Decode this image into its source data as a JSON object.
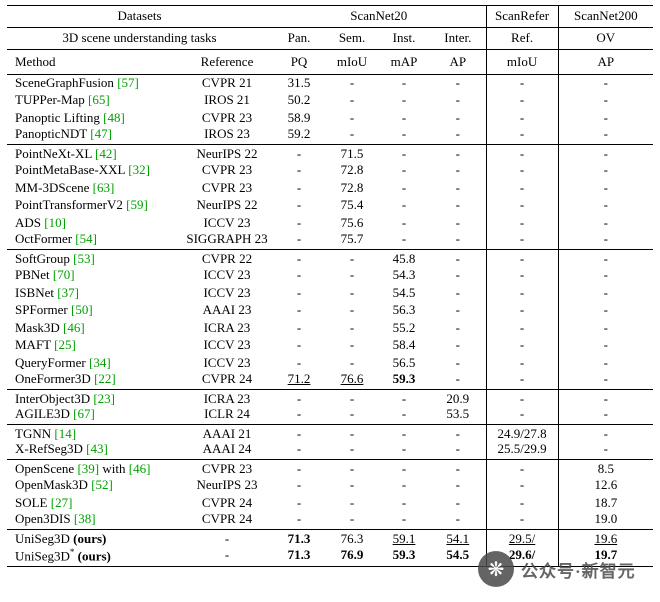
{
  "header": {
    "datasets_label": "Datasets",
    "scannet20": "ScanNet20",
    "scanrefer": "ScanRefer",
    "scannet200": "ScanNet200",
    "tasks_label": "3D scene understanding tasks",
    "task_cols": [
      "Pan.",
      "Sem.",
      "Inst.",
      "Inter.",
      "Ref.",
      "OV"
    ],
    "method_label": "Method",
    "reference_label": "Reference",
    "metric_cols": [
      "PQ",
      "mIoU",
      "mAP",
      "AP",
      "mIoU",
      "AP"
    ]
  },
  "colors": {
    "citation_green": "#00a000"
  },
  "groups": [
    {
      "rows": [
        {
          "method": [
            {
              "t": "SceneGraphFusion ",
              "c": false
            },
            {
              "t": "[57]",
              "c": true
            }
          ],
          "reference": "CVPR 21",
          "values": [
            "31.5",
            "-",
            "-",
            "-",
            "-",
            "-"
          ]
        },
        {
          "method": [
            {
              "t": "TUPPer-Map ",
              "c": false
            },
            {
              "t": "[65]",
              "c": true
            }
          ],
          "reference": "IROS 21",
          "values": [
            "50.2",
            "-",
            "-",
            "-",
            "-",
            "-"
          ]
        },
        {
          "method": [
            {
              "t": "Panoptic Lifting ",
              "c": false
            },
            {
              "t": "[48]",
              "c": true
            }
          ],
          "reference": "CVPR 23",
          "values": [
            "58.9",
            "-",
            "-",
            "-",
            "-",
            "-"
          ]
        },
        {
          "method": [
            {
              "t": "PanopticNDT ",
              "c": false
            },
            {
              "t": "[47]",
              "c": true
            }
          ],
          "reference": "IROS 23",
          "values": [
            "59.2",
            "-",
            "-",
            "-",
            "-",
            "-"
          ]
        }
      ]
    },
    {
      "rows": [
        {
          "method": [
            {
              "t": "PointNeXt-XL ",
              "c": false
            },
            {
              "t": "[42]",
              "c": true
            }
          ],
          "reference": "NeurIPS 22",
          "values": [
            "-",
            "71.5",
            "-",
            "-",
            "-",
            "-"
          ]
        },
        {
          "method": [
            {
              "t": "PointMetaBase-XXL ",
              "c": false
            },
            {
              "t": "[32]",
              "c": true
            }
          ],
          "reference": "CVPR 23",
          "values": [
            "-",
            "72.8",
            "-",
            "-",
            "-",
            "-"
          ]
        },
        {
          "method": [
            {
              "t": "MM-3DScene ",
              "c": false
            },
            {
              "t": "[63]",
              "c": true
            }
          ],
          "reference": "CVPR 23",
          "values": [
            "-",
            "72.8",
            "-",
            "-",
            "-",
            "-"
          ]
        },
        {
          "method": [
            {
              "t": "PointTransformerV2 ",
              "c": false
            },
            {
              "t": "[59]",
              "c": true
            }
          ],
          "reference": "NeurIPS 22",
          "values": [
            "-",
            "75.4",
            "-",
            "-",
            "-",
            "-"
          ]
        },
        {
          "method": [
            {
              "t": "ADS ",
              "c": false
            },
            {
              "t": "[10]",
              "c": true
            }
          ],
          "reference": "ICCV 23",
          "values": [
            "-",
            "75.6",
            "-",
            "-",
            "-",
            "-"
          ]
        },
        {
          "method": [
            {
              "t": "OctFormer ",
              "c": false
            },
            {
              "t": "[54]",
              "c": true
            }
          ],
          "reference": "SIGGRAPH 23",
          "values": [
            "-",
            "75.7",
            "-",
            "-",
            "-",
            "-"
          ]
        }
      ]
    },
    {
      "rows": [
        {
          "method": [
            {
              "t": "SoftGroup ",
              "c": false
            },
            {
              "t": "[53]",
              "c": true
            }
          ],
          "reference": "CVPR 22",
          "values": [
            "-",
            "-",
            "45.8",
            "-",
            "-",
            "-"
          ]
        },
        {
          "method": [
            {
              "t": "PBNet ",
              "c": false
            },
            {
              "t": "[70]",
              "c": true
            }
          ],
          "reference": "ICCV 23",
          "values": [
            "-",
            "-",
            "54.3",
            "-",
            "-",
            "-"
          ]
        },
        {
          "method": [
            {
              "t": "ISBNet ",
              "c": false
            },
            {
              "t": "[37]",
              "c": true
            }
          ],
          "reference": "ICCV 23",
          "values": [
            "-",
            "-",
            "54.5",
            "-",
            "-",
            "-"
          ]
        },
        {
          "method": [
            {
              "t": "SPFormer ",
              "c": false
            },
            {
              "t": "[50]",
              "c": true
            }
          ],
          "reference": "AAAI 23",
          "values": [
            "-",
            "-",
            "56.3",
            "-",
            "-",
            "-"
          ]
        },
        {
          "method": [
            {
              "t": "Mask3D ",
              "c": false
            },
            {
              "t": "[46]",
              "c": true
            }
          ],
          "reference": "ICRA 23",
          "values": [
            "-",
            "-",
            "55.2",
            "-",
            "-",
            "-"
          ]
        },
        {
          "method": [
            {
              "t": "MAFT ",
              "c": false
            },
            {
              "t": "[25]",
              "c": true
            }
          ],
          "reference": "ICCV 23",
          "values": [
            "-",
            "-",
            "58.4",
            "-",
            "-",
            "-"
          ]
        },
        {
          "method": [
            {
              "t": "QueryFormer ",
              "c": false
            },
            {
              "t": "[34]",
              "c": true
            }
          ],
          "reference": "ICCV 23",
          "values": [
            "-",
            "-",
            "56.5",
            "-",
            "-",
            "-"
          ]
        },
        {
          "method": [
            {
              "t": "OneFormer3D ",
              "c": false
            },
            {
              "t": "[22]",
              "c": true
            }
          ],
          "reference": "CVPR 24",
          "values": [
            {
              "t": "71.2",
              "u": true
            },
            {
              "t": "76.6",
              "u": true
            },
            {
              "t": "59.3",
              "b": true
            },
            "-",
            "-",
            "-"
          ]
        }
      ]
    },
    {
      "rows": [
        {
          "method": [
            {
              "t": "InterObject3D ",
              "c": false
            },
            {
              "t": "[23]",
              "c": true
            }
          ],
          "reference": "ICRA 23",
          "values": [
            "-",
            "-",
            "-",
            "20.9",
            "-",
            "-"
          ]
        },
        {
          "method": [
            {
              "t": "AGILE3D ",
              "c": false
            },
            {
              "t": "[67]",
              "c": true
            }
          ],
          "reference": "ICLR 24",
          "values": [
            "-",
            "-",
            "-",
            "53.5",
            "-",
            "-"
          ]
        }
      ]
    },
    {
      "rows": [
        {
          "method": [
            {
              "t": "TGNN ",
              "c": false
            },
            {
              "t": "[14]",
              "c": true
            }
          ],
          "reference": "AAAI 21",
          "values": [
            "-",
            "-",
            "-",
            "-",
            "24.9/27.8",
            "-"
          ]
        },
        {
          "method": [
            {
              "t": "X-RefSeg3D ",
              "c": false
            },
            {
              "t": "[43]",
              "c": true
            }
          ],
          "reference": "AAAI 24",
          "values": [
            "-",
            "-",
            "-",
            "-",
            "25.5/29.9",
            "-"
          ]
        }
      ]
    },
    {
      "rows": [
        {
          "method": [
            {
              "t": "OpenScene ",
              "c": false
            },
            {
              "t": "[39]",
              "c": true
            },
            {
              "t": " with ",
              "c": false
            },
            {
              "t": "[46]",
              "c": true
            }
          ],
          "reference": "CVPR 23",
          "values": [
            "-",
            "-",
            "-",
            "-",
            "-",
            "8.5"
          ]
        },
        {
          "method": [
            {
              "t": "OpenMask3D ",
              "c": false
            },
            {
              "t": "[52]",
              "c": true
            }
          ],
          "reference": "NeurIPS 23",
          "values": [
            "-",
            "-",
            "-",
            "-",
            "-",
            "12.6"
          ]
        },
        {
          "method": [
            {
              "t": "SOLE ",
              "c": false
            },
            {
              "t": "[27]",
              "c": true
            }
          ],
          "reference": "CVPR 24",
          "values": [
            "-",
            "-",
            "-",
            "-",
            "-",
            "18.7"
          ]
        },
        {
          "method": [
            {
              "t": "Open3DIS ",
              "c": false
            },
            {
              "t": "[38]",
              "c": true
            }
          ],
          "reference": "CVPR 24",
          "values": [
            "-",
            "-",
            "-",
            "-",
            "-",
            "19.0"
          ]
        }
      ]
    },
    {
      "rows": [
        {
          "method": [
            {
              "t": "UniSeg3D ",
              "c": false
            },
            {
              "t": "(ours)",
              "c": false,
              "b": true
            }
          ],
          "reference": "-",
          "values": [
            {
              "t": "71.3",
              "b": true
            },
            "76.3",
            {
              "t": "59.1",
              "u": true
            },
            {
              "t": "54.1",
              "u": true
            },
            {
              "t": "29.5/",
              "u": true
            },
            {
              "t": "19.6",
              "u": true
            }
          ]
        },
        {
          "method": [
            {
              "t": "UniSeg3D",
              "c": false
            },
            {
              "t": "*",
              "c": false,
              "sup": true
            },
            {
              "t": " (ours)",
              "c": false,
              "b": true
            }
          ],
          "reference": "-",
          "values": [
            {
              "t": "71.3",
              "b": true
            },
            {
              "t": "76.9",
              "b": true
            },
            {
              "t": "59.3",
              "b": true
            },
            {
              "t": "54.5",
              "b": true
            },
            {
              "t": "29.6/",
              "b": true
            },
            {
              "t": "19.7",
              "b": true
            }
          ]
        }
      ]
    }
  ],
  "watermark": {
    "text": "公众号·新智元",
    "icon": "fan-logo-icon",
    "icon_glyph": "❋"
  }
}
